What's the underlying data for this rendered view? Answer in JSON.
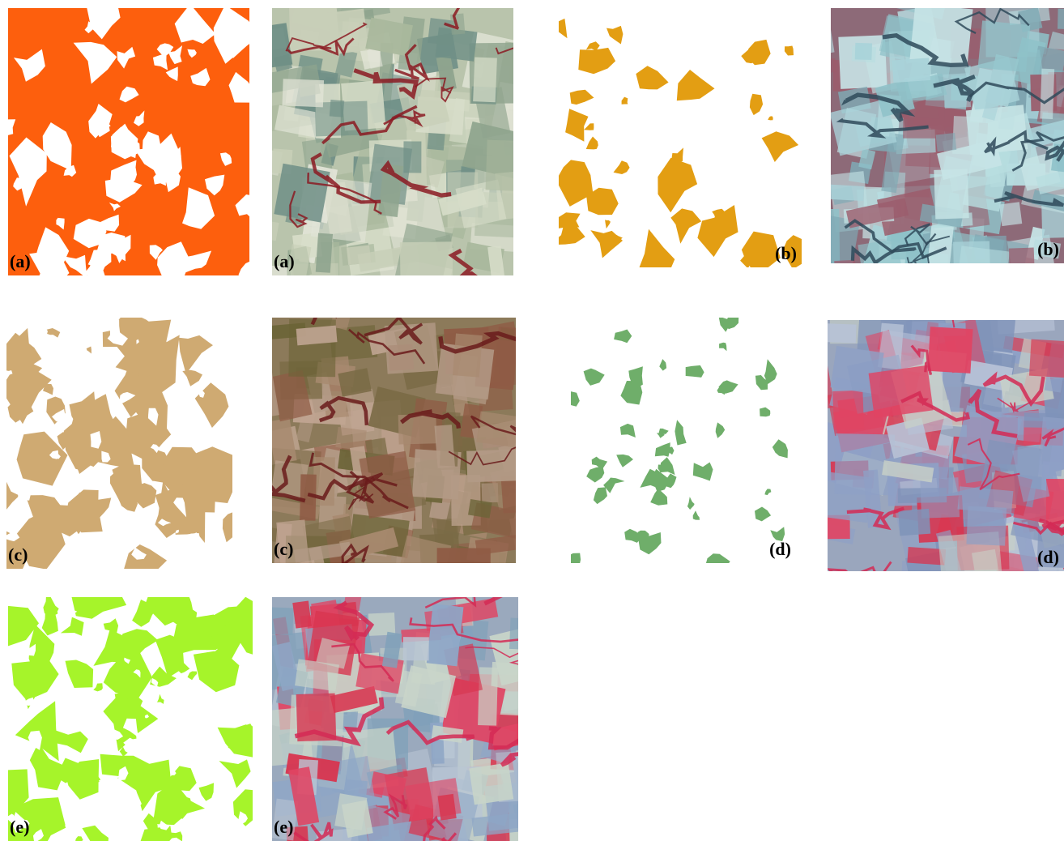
{
  "panels": [
    {
      "label": "(a)"
    },
    {
      "label": "(a)"
    },
    {
      "label": "(b)"
    },
    {
      "label": "(b)"
    },
    {
      "label": "(c)"
    },
    {
      "label": "(c)"
    },
    {
      "label": "(d)"
    },
    {
      "label": "(d)"
    },
    {
      "label": "(e)"
    },
    {
      "label": "(e)"
    }
  ]
}
